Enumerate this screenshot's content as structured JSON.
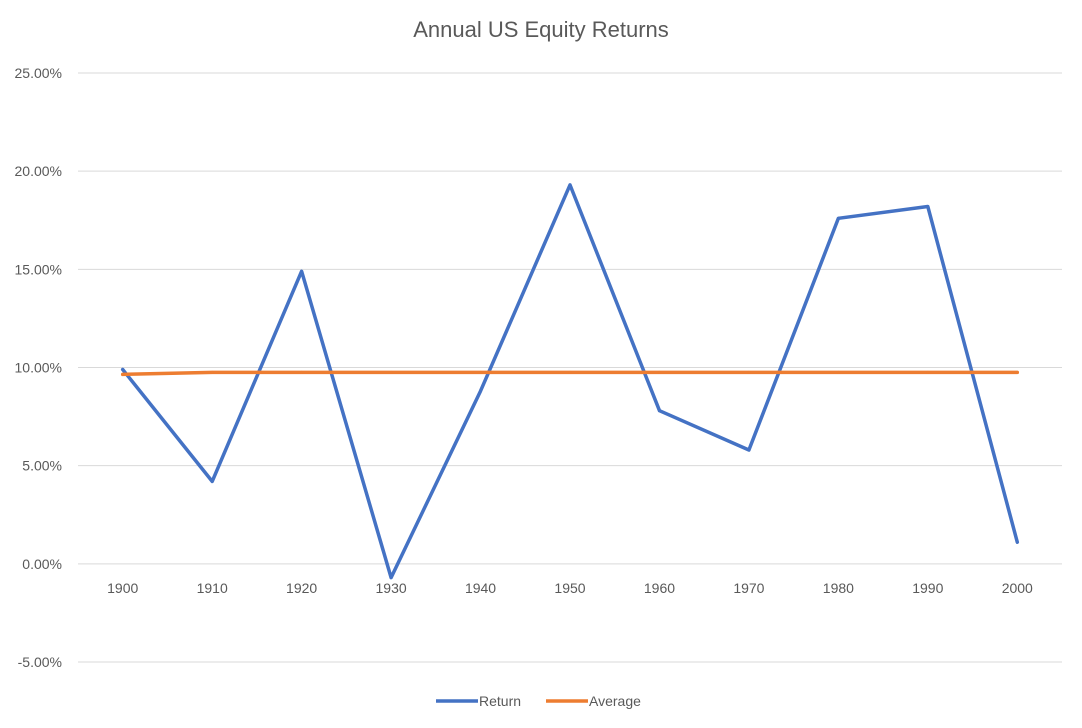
{
  "chart_data": {
    "type": "line",
    "title": "Annual US Equity Returns",
    "xlabel": "",
    "ylabel": "",
    "categories": [
      "1900",
      "1910",
      "1920",
      "1930",
      "1940",
      "1950",
      "1960",
      "1970",
      "1980",
      "1990",
      "2000"
    ],
    "y_ticks": [
      "25.00%",
      "20.00%",
      "15.00%",
      "10.00%",
      "5.00%",
      "0.00%",
      "-5.00%"
    ],
    "ylim": [
      -5,
      25
    ],
    "grid": true,
    "legend_position": "bottom",
    "series": [
      {
        "name": "Return",
        "color": "#4472c4",
        "values": [
          9.9,
          4.2,
          14.9,
          -0.7,
          8.8,
          19.3,
          7.8,
          5.8,
          17.6,
          18.2,
          1.1
        ]
      },
      {
        "name": "Average",
        "color": "#ed7d31",
        "values": [
          9.65,
          9.75,
          9.75,
          9.75,
          9.75,
          9.75,
          9.75,
          9.75,
          9.75,
          9.75,
          9.75
        ]
      }
    ]
  }
}
